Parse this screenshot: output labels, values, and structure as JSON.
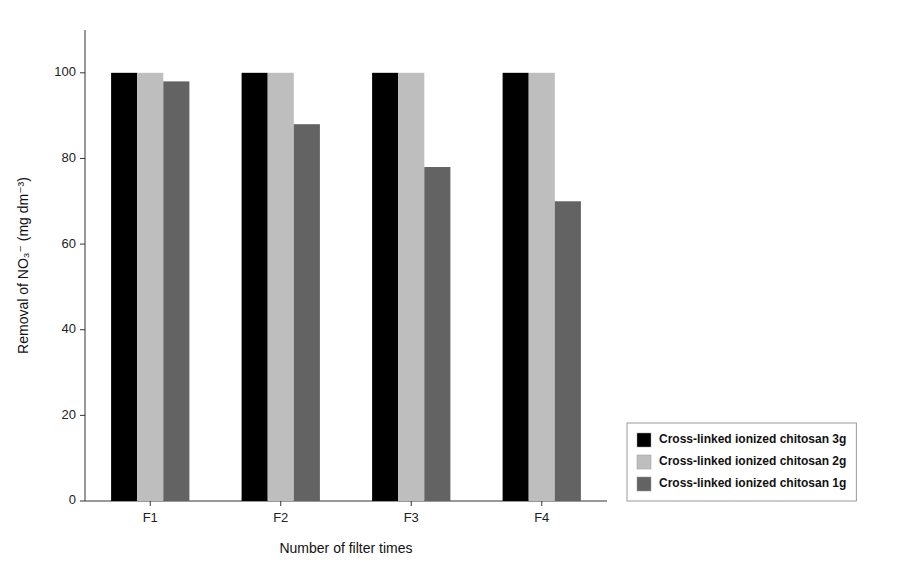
{
  "chart_data": {
    "type": "bar",
    "categories": [
      "F1",
      "F2",
      "F3",
      "F4"
    ],
    "series": [
      {
        "name": "Cross-linked ionized chitosan 3g",
        "color": "#000000",
        "values": [
          100,
          100,
          100,
          100
        ]
      },
      {
        "name": "Cross-linked ionized chitosan 2g",
        "color": "#bebebe",
        "values": [
          100,
          100,
          100,
          100
        ]
      },
      {
        "name": "Cross-linked ionized chitosan 1g",
        "color": "#636363",
        "values": [
          98,
          88,
          78,
          70
        ]
      }
    ],
    "xlabel": "Number of filter times",
    "ylabel": "Removal of NO₃⁻ (mg dm⁻³)",
    "ylim": [
      0,
      110
    ],
    "yticks": [
      0,
      20,
      40,
      60,
      80,
      100
    ],
    "grid": false,
    "legend": "lower right"
  }
}
